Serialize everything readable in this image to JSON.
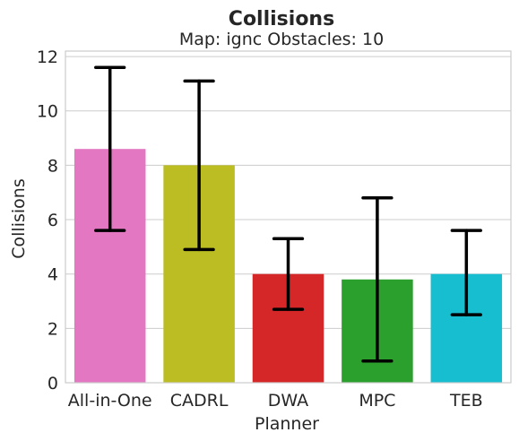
{
  "chart_data": {
    "type": "bar",
    "title": "Collisions",
    "subtitle": "Map: ignc Obstacles: 10",
    "xlabel": "Planner",
    "ylabel": "Collisions",
    "categories": [
      "All-in-One",
      "CADRL",
      "DWA",
      "MPC",
      "TEB"
    ],
    "values": [
      8.6,
      8.0,
      4.0,
      3.8,
      4.0
    ],
    "error_low": [
      5.6,
      4.9,
      2.7,
      0.8,
      2.5
    ],
    "error_high": [
      11.6,
      11.1,
      5.3,
      6.8,
      5.6
    ],
    "colors": [
      "#e377c2",
      "#bcbd22",
      "#d62728",
      "#2ca02c",
      "#17becf"
    ],
    "ylim": [
      0,
      12.2
    ],
    "yticks": [
      0,
      2,
      4,
      6,
      8,
      10,
      12
    ],
    "grid": true
  }
}
